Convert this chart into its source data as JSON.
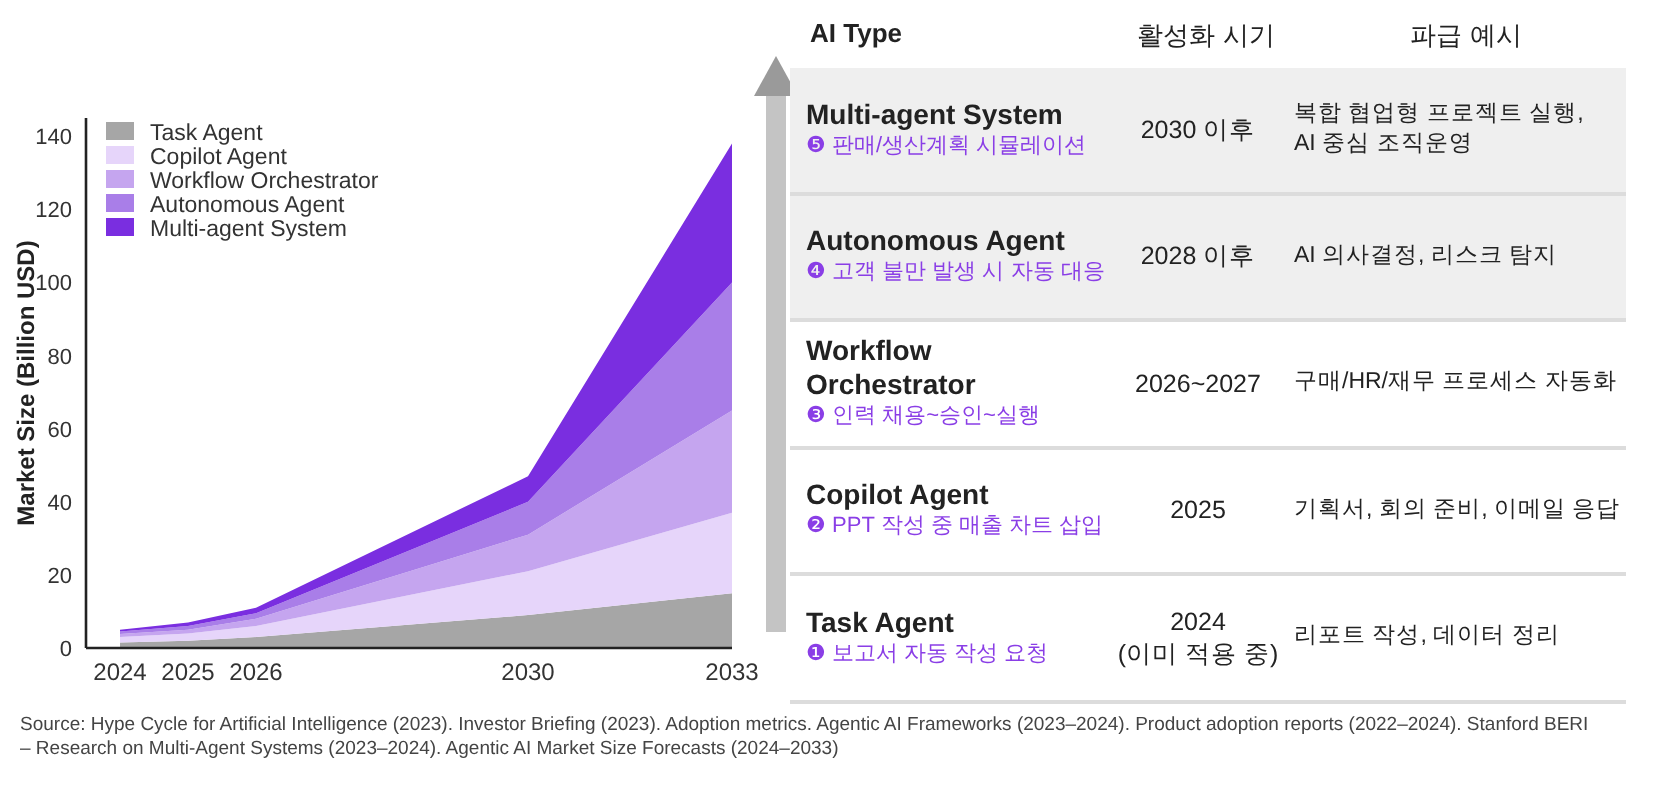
{
  "chart_data": [
    {
      "type": "area",
      "stacked": true,
      "ylabel": "Market Size (Billion USD)",
      "x": [
        2024,
        2025,
        2026,
        2030,
        2033
      ],
      "xlim": [
        2023.5,
        2033
      ],
      "xticks": [
        2024,
        2025,
        2026,
        2030,
        2033
      ],
      "ylim": [
        0,
        145
      ],
      "yticks": [
        0,
        20,
        40,
        60,
        80,
        100,
        120,
        140
      ],
      "legend": "top left",
      "grid": false,
      "series": [
        {
          "name": "Task Agent",
          "color": "#a6a6a6",
          "values": [
            1.5,
            2,
            3,
            9,
            15
          ]
        },
        {
          "name": "Copilot Agent",
          "color": "#e6d5fa",
          "values": [
            1.5,
            2,
            3,
            12,
            22
          ]
        },
        {
          "name": "Workflow Orchestrator",
          "color": "#c5a5ef",
          "values": [
            0.8,
            1,
            2,
            10,
            28
          ]
        },
        {
          "name": "Autonomous Agent",
          "color": "#a97ee8",
          "values": [
            0.7,
            1,
            1.5,
            9,
            35
          ]
        },
        {
          "name": "Multi-agent System",
          "color": "#7a2ee0",
          "values": [
            0.5,
            1,
            1.5,
            7,
            38
          ]
        }
      ],
      "annotations": [
        "Source: Hype Cycle for Artificial Intelligence (2023). Investor Briefing (2023). Adoption metrics. Agentic AI Frameworks (2023–2024). Product adoption reports (2022–2024). Stanford BERI – Research on Multi-Agent Systems (2023–2024). Agentic AI Market Size Forecasts (2024–2033)"
      ]
    },
    {
      "type": "other",
      "annotations": [
        "AI Type",
        "활성화 시기",
        "파급 예시",
        "Multi-agent System",
        "❺ 판매/생산계획 시뮬레이션",
        "2030 이후",
        "복합 협업형 프로젝트 실행,\nAI 중심 조직운영",
        "Autonomous Agent",
        "❹ 고객 불만 발생 시 자동 대응",
        "2028 이후",
        "AI 의사결정, 리스크 탐지",
        "Workflow\nOrchestrator",
        "❸ 인력 채용~승인~실행",
        "2026~2027",
        "구매/HR/재무 프로세스 자동화",
        "Copilot Agent",
        "❷ PPT 작성 중 매출 차트 삽입",
        "2025",
        "기획서, 회의 준비, 이메일 응답",
        "Task Agent",
        "❶ 보고서 자동 작성 요청",
        "2024\n(이미 적용 중)",
        "리포트 작성, 데이터 정리"
      ]
    }
  ]
}
